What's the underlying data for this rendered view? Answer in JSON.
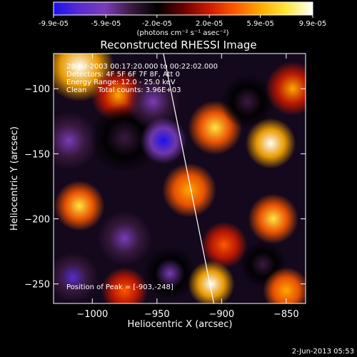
{
  "colorbar": {
    "tick_labels": [
      "-9.9e-05",
      "-5.9e-05",
      "-2.0e-05",
      "2.0e-05",
      "5.9e-05",
      "9.9e-05"
    ],
    "tick_values": [
      -9.9e-05,
      -5.9e-05,
      -2e-05,
      2e-05,
      5.9e-05,
      9.9e-05
    ],
    "range": [
      -9.9e-05,
      9.9e-05
    ],
    "unit_label": "(photons cm⁻² s⁻¹ asec⁻²)",
    "colors": [
      "#1a10f0",
      "#5a2bd0",
      "#7a3cb8",
      "#3a1a40",
      "#000000",
      "#6a0000",
      "#cc1a00",
      "#ff5a00",
      "#ffaa00",
      "#ffe840",
      "#ffffff"
    ]
  },
  "chart_data": {
    "type": "heatmap",
    "title": "Reconstructed RHESSI Image",
    "xlabel": "Heliocentric X (arcsec)",
    "ylabel": "Heliocentric Y (arcsec)",
    "xlim": [
      -1030,
      -835
    ],
    "ylim": [
      -265,
      -73
    ],
    "x_ticks": [
      -1000,
      -950,
      -900,
      -850
    ],
    "x_tick_labels": [
      "−1000",
      "−950",
      "−900",
      "−850"
    ],
    "y_ticks": [
      -100,
      -150,
      -200,
      -250
    ],
    "y_tick_labels": [
      "−100",
      "−150",
      "−200",
      "−250"
    ],
    "limb_line": [
      [
        -945,
        -73
      ],
      [
        -906,
        -265
      ]
    ],
    "blobs": [
      {
        "x": -1010,
        "y": -83,
        "v": 9e-05,
        "r": 18
      },
      {
        "x": -980,
        "y": -105,
        "v": 5e-05,
        "r": 14
      },
      {
        "x": -1018,
        "y": -140,
        "v": -6e-05,
        "r": 15
      },
      {
        "x": -975,
        "y": -138,
        "v": -4e-05,
        "r": 18
      },
      {
        "x": -953,
        "y": -110,
        "v": -5.5e-05,
        "r": 14
      },
      {
        "x": -945,
        "y": -140,
        "v": -9e-05,
        "r": 12
      },
      {
        "x": -925,
        "y": -178,
        "v": 6e-05,
        "r": 14
      },
      {
        "x": -905,
        "y": -130,
        "v": 7e-05,
        "r": 14
      },
      {
        "x": -880,
        "y": -110,
        "v": -4e-05,
        "r": 14
      },
      {
        "x": -862,
        "y": -142,
        "v": 9e-05,
        "r": 13
      },
      {
        "x": -845,
        "y": -100,
        "v": 5e-05,
        "r": 14
      },
      {
        "x": -860,
        "y": -200,
        "v": 8.5e-05,
        "r": 13
      },
      {
        "x": -898,
        "y": -220,
        "v": 4.5e-05,
        "r": 12
      },
      {
        "x": -1010,
        "y": -190,
        "v": 7.5e-05,
        "r": 13
      },
      {
        "x": -975,
        "y": -215,
        "v": -6.5e-05,
        "r": 14
      },
      {
        "x": -1015,
        "y": -245,
        "v": -8e-05,
        "r": 13
      },
      {
        "x": -975,
        "y": -255,
        "v": 4e-05,
        "r": 12
      },
      {
        "x": -940,
        "y": -242,
        "v": -5e-05,
        "r": 14
      },
      {
        "x": -908,
        "y": -250,
        "v": 9.5e-05,
        "r": 12
      },
      {
        "x": -868,
        "y": -235,
        "v": -3e-05,
        "r": 12
      },
      {
        "x": -850,
        "y": -255,
        "v": 6e-05,
        "r": 12
      }
    ]
  },
  "annotations": {
    "line1": "28-Jul-2003 00:17:20.000 to 00:22:02.000",
    "line2": "Detectors: 4F 5F 6F 7F 8F, Att 0",
    "line3": "Energy Range: 12.0 - 25.0 keV",
    "line4": "Clean     Total counts: 3.96E+03",
    "peak": "Position of Peak = [-903,-248]"
  },
  "footer": {
    "timestamp": "2-Jun-2013 05:53"
  }
}
